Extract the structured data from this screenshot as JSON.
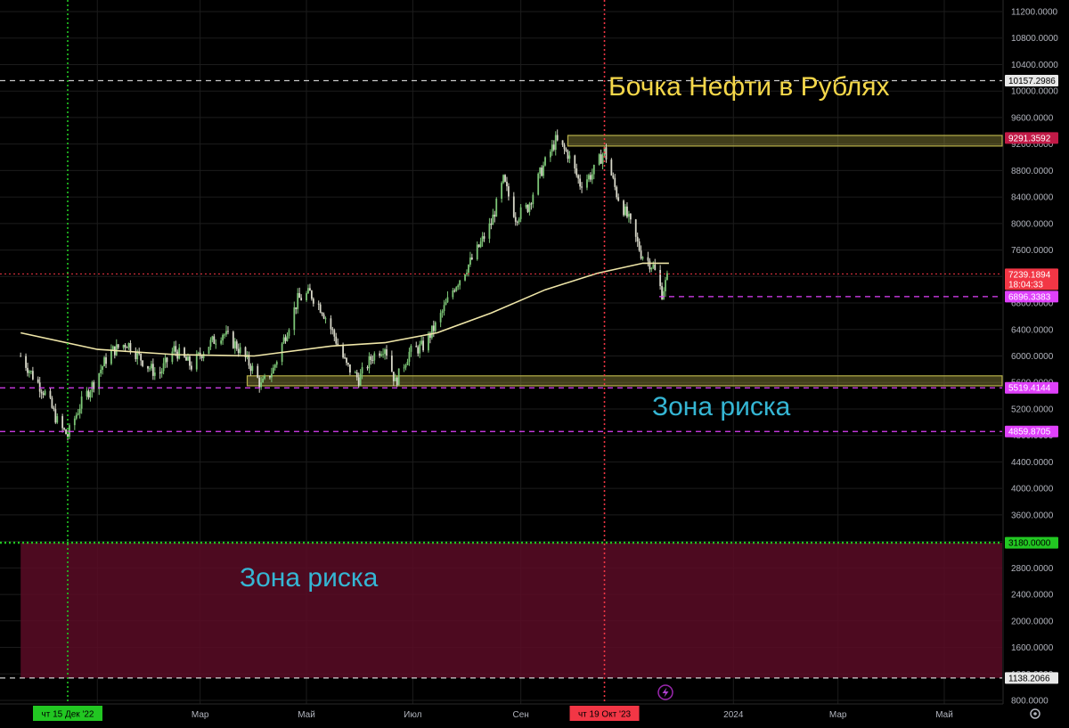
{
  "chart_data": {
    "type": "candlestick",
    "title": "Бочка Нефти в Рублях",
    "y_axis": {
      "ticks": [
        "11200.0000",
        "10800.0000",
        "10400.0000",
        "10000.0000",
        "9600.0000",
        "9200.0000",
        "8800.0000",
        "8400.0000",
        "8000.0000",
        "7600.0000",
        "7200.0000",
        "6800.0000",
        "6400.0000",
        "6000.0000",
        "5600.0000",
        "5200.0000",
        "4800.0000",
        "4400.0000",
        "4000.0000",
        "3600.0000",
        "3200.0000",
        "2800.0000",
        "2400.0000",
        "2000.0000",
        "1600.0000",
        "1200.0000",
        "800.0000"
      ],
      "ylim": [
        750,
        11300
      ]
    },
    "x_axis": {
      "ticks": [
        {
          "label": "3",
          "date": "2023-01-01"
        },
        {
          "label": "Мар",
          "date": "2023-03-01"
        },
        {
          "label": "Май",
          "date": "2023-05-01"
        },
        {
          "label": "Июл",
          "date": "2023-07-01"
        },
        {
          "label": "Сен",
          "date": "2023-09-01"
        },
        {
          "label": "2024",
          "date": "2024-01-01"
        },
        {
          "label": "Мар",
          "date": "2024-03-01"
        },
        {
          "label": "Май",
          "date": "2024-05-01"
        }
      ],
      "xlim": [
        "2022-11-18",
        "2024-06-10"
      ]
    },
    "price_path": [
      {
        "date": "2022-11-18",
        "price": 6000
      },
      {
        "date": "2022-11-25",
        "price": 5700
      },
      {
        "date": "2022-12-03",
        "price": 5400
      },
      {
        "date": "2022-12-10",
        "price": 4950
      },
      {
        "date": "2022-12-15",
        "price": 4800
      },
      {
        "date": "2022-12-22",
        "price": 5250
      },
      {
        "date": "2022-12-30",
        "price": 5600
      },
      {
        "date": "2023-01-08",
        "price": 6050
      },
      {
        "date": "2023-01-18",
        "price": 6200
      },
      {
        "date": "2023-01-28",
        "price": 5900
      },
      {
        "date": "2023-02-05",
        "price": 5700
      },
      {
        "date": "2023-02-14",
        "price": 6100
      },
      {
        "date": "2023-02-24",
        "price": 5850
      },
      {
        "date": "2023-03-05",
        "price": 6150
      },
      {
        "date": "2023-03-14",
        "price": 6350
      },
      {
        "date": "2023-03-22",
        "price": 6150
      },
      {
        "date": "2023-03-30",
        "price": 5850
      },
      {
        "date": "2023-04-05",
        "price": 5550
      },
      {
        "date": "2023-04-12",
        "price": 5800
      },
      {
        "date": "2023-04-18",
        "price": 6250
      },
      {
        "date": "2023-04-26",
        "price": 6850
      },
      {
        "date": "2023-05-03",
        "price": 6950
      },
      {
        "date": "2023-05-10",
        "price": 6700
      },
      {
        "date": "2023-05-17",
        "price": 6300
      },
      {
        "date": "2023-05-24",
        "price": 5850
      },
      {
        "date": "2023-05-31",
        "price": 5650
      },
      {
        "date": "2023-06-08",
        "price": 6000
      },
      {
        "date": "2023-06-15",
        "price": 6150
      },
      {
        "date": "2023-06-21",
        "price": 5600
      },
      {
        "date": "2023-06-29",
        "price": 6050
      },
      {
        "date": "2023-07-07",
        "price": 6150
      },
      {
        "date": "2023-07-15",
        "price": 6500
      },
      {
        "date": "2023-07-25",
        "price": 7050
      },
      {
        "date": "2023-08-05",
        "price": 7500
      },
      {
        "date": "2023-08-15",
        "price": 8000
      },
      {
        "date": "2023-08-22",
        "price": 8650
      },
      {
        "date": "2023-08-29",
        "price": 8100
      },
      {
        "date": "2023-09-05",
        "price": 8250
      },
      {
        "date": "2023-09-12",
        "price": 8750
      },
      {
        "date": "2023-09-21",
        "price": 9250
      },
      {
        "date": "2023-09-28",
        "price": 9050
      },
      {
        "date": "2023-10-05",
        "price": 8600
      },
      {
        "date": "2023-10-12",
        "price": 8750
      },
      {
        "date": "2023-10-19",
        "price": 9100
      },
      {
        "date": "2023-10-26",
        "price": 8450
      },
      {
        "date": "2023-11-02",
        "price": 8050
      },
      {
        "date": "2023-11-09",
        "price": 7550
      },
      {
        "date": "2023-11-16",
        "price": 7350
      },
      {
        "date": "2023-11-21",
        "price": 6950
      },
      {
        "date": "2023-11-25",
        "price": 7250
      }
    ],
    "moving_average": [
      {
        "date": "2022-11-18",
        "value": 6350
      },
      {
        "date": "2023-01-01",
        "value": 6100
      },
      {
        "date": "2023-02-15",
        "value": 6020
      },
      {
        "date": "2023-04-01",
        "value": 6000
      },
      {
        "date": "2023-05-15",
        "value": 6150
      },
      {
        "date": "2023-06-15",
        "value": 6200
      },
      {
        "date": "2023-07-15",
        "value": 6350
      },
      {
        "date": "2023-08-15",
        "value": 6650
      },
      {
        "date": "2023-09-15",
        "value": 7000
      },
      {
        "date": "2023-10-15",
        "value": 7250
      },
      {
        "date": "2023-11-10",
        "value": 7400
      },
      {
        "date": "2023-11-25",
        "value": 7400
      }
    ],
    "horizontal_levels": [
      {
        "value": 10157.2986,
        "label": "10157.2986",
        "style": "dashed",
        "color": "#c8c8c8"
      },
      {
        "value": 9291.3592,
        "label": "9291.3592",
        "style": "zone",
        "color": "#c21a47"
      },
      {
        "value": 7239.1894,
        "label": "7239.1894",
        "sublabel": "18:04:33",
        "style": "dotted",
        "color": "#f23645"
      },
      {
        "value": 6896.3383,
        "label": "6896.3383",
        "style": "dashed",
        "color": "#e040fb"
      },
      {
        "value": 5519.4144,
        "label": "5519.4144",
        "style": "dashed",
        "color": "#e040fb"
      },
      {
        "value": 4859.8705,
        "label": "4859.8705",
        "style": "dashed",
        "color": "#e040fb"
      },
      {
        "value": 3180.0,
        "label": "3180.0000",
        "style": "dotted",
        "color": "#22c722"
      },
      {
        "value": 1138.2066,
        "label": "1138.2066",
        "style": "dashed",
        "color": "#d0d0d0"
      }
    ],
    "zones": [
      {
        "from": 9170,
        "to": 9330,
        "start": "2023-09-28",
        "color": "#b7b04a"
      },
      {
        "from": 5550,
        "to": 5700,
        "start": "2023-03-28",
        "color": "#b7b04a"
      },
      {
        "from": 1138.2066,
        "to": 3180,
        "start": "2022-11-18",
        "color": "#5a0c26"
      }
    ],
    "crosshair_markers": [
      {
        "date": "2022-12-15",
        "label": "чт 15 Дек '22",
        "color": "#22c722"
      },
      {
        "date": "2023-10-19",
        "label": "чт 19 Окт '23",
        "color": "#f23645"
      }
    ],
    "annotations": [
      {
        "text": "Бочка Нефти в Рублях",
        "color": "#f5d84a"
      },
      {
        "text": "Зона риска",
        "color": "#35b6d4"
      },
      {
        "text": "Зона риска",
        "color": "#35b6d4"
      }
    ]
  },
  "ui": {
    "lightning_icon": "lightning-icon",
    "settings_icon": "gear-icon"
  }
}
